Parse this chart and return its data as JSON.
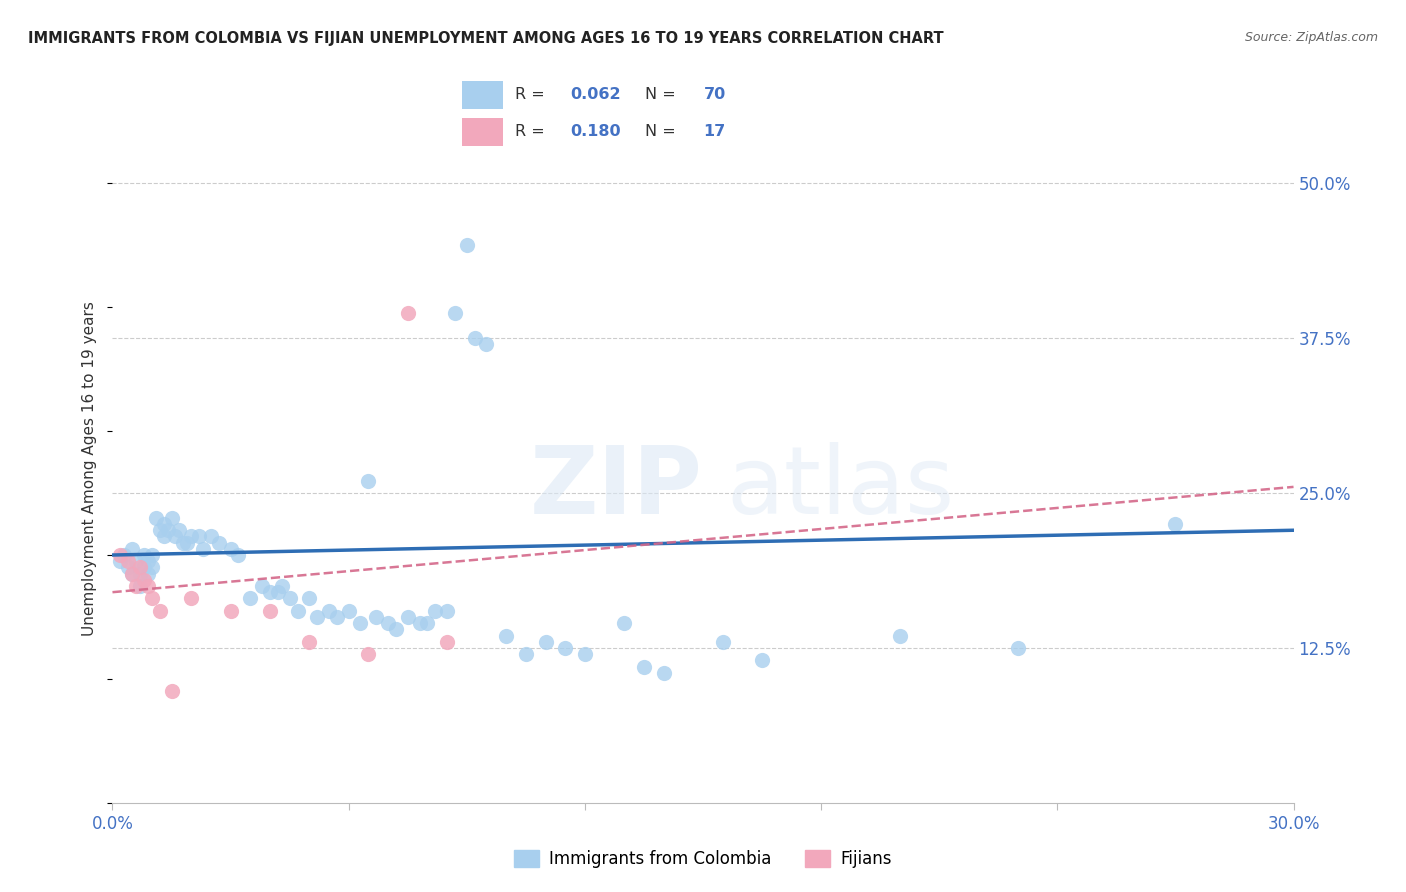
{
  "title": "IMMIGRANTS FROM COLOMBIA VS FIJIAN UNEMPLOYMENT AMONG AGES 16 TO 19 YEARS CORRELATION CHART",
  "source": "Source: ZipAtlas.com",
  "ylabel": "Unemployment Among Ages 16 to 19 years",
  "ytick_labels": [
    "50.0%",
    "37.5%",
    "25.0%",
    "12.5%"
  ],
  "ytick_values": [
    0.5,
    0.375,
    0.25,
    0.125
  ],
  "xlim": [
    0.0,
    0.3
  ],
  "ylim": [
    0.0,
    0.54
  ],
  "blue_color": "#A8CFEE",
  "pink_color": "#F2A8BC",
  "blue_line_color": "#2E6DB4",
  "pink_line_color": "#D4688A",
  "blue_scatter": [
    [
      0.002,
      0.195
    ],
    [
      0.003,
      0.2
    ],
    [
      0.004,
      0.19
    ],
    [
      0.005,
      0.205
    ],
    [
      0.005,
      0.185
    ],
    [
      0.006,
      0.195
    ],
    [
      0.007,
      0.185
    ],
    [
      0.007,
      0.175
    ],
    [
      0.008,
      0.2
    ],
    [
      0.008,
      0.19
    ],
    [
      0.009,
      0.195
    ],
    [
      0.009,
      0.185
    ],
    [
      0.01,
      0.2
    ],
    [
      0.01,
      0.19
    ],
    [
      0.011,
      0.23
    ],
    [
      0.012,
      0.22
    ],
    [
      0.013,
      0.225
    ],
    [
      0.013,
      0.215
    ],
    [
      0.014,
      0.22
    ],
    [
      0.015,
      0.23
    ],
    [
      0.016,
      0.215
    ],
    [
      0.017,
      0.22
    ],
    [
      0.018,
      0.21
    ],
    [
      0.019,
      0.21
    ],
    [
      0.02,
      0.215
    ],
    [
      0.022,
      0.215
    ],
    [
      0.023,
      0.205
    ],
    [
      0.025,
      0.215
    ],
    [
      0.027,
      0.21
    ],
    [
      0.03,
      0.205
    ],
    [
      0.032,
      0.2
    ],
    [
      0.035,
      0.165
    ],
    [
      0.038,
      0.175
    ],
    [
      0.04,
      0.17
    ],
    [
      0.042,
      0.17
    ],
    [
      0.043,
      0.175
    ],
    [
      0.045,
      0.165
    ],
    [
      0.047,
      0.155
    ],
    [
      0.05,
      0.165
    ],
    [
      0.052,
      0.15
    ],
    [
      0.055,
      0.155
    ],
    [
      0.057,
      0.15
    ],
    [
      0.06,
      0.155
    ],
    [
      0.063,
      0.145
    ],
    [
      0.065,
      0.26
    ],
    [
      0.067,
      0.15
    ],
    [
      0.07,
      0.145
    ],
    [
      0.072,
      0.14
    ],
    [
      0.075,
      0.15
    ],
    [
      0.078,
      0.145
    ],
    [
      0.08,
      0.145
    ],
    [
      0.082,
      0.155
    ],
    [
      0.085,
      0.155
    ],
    [
      0.087,
      0.395
    ],
    [
      0.09,
      0.45
    ],
    [
      0.092,
      0.375
    ],
    [
      0.095,
      0.37
    ],
    [
      0.1,
      0.135
    ],
    [
      0.105,
      0.12
    ],
    [
      0.11,
      0.13
    ],
    [
      0.115,
      0.125
    ],
    [
      0.12,
      0.12
    ],
    [
      0.13,
      0.145
    ],
    [
      0.135,
      0.11
    ],
    [
      0.14,
      0.105
    ],
    [
      0.155,
      0.13
    ],
    [
      0.165,
      0.115
    ],
    [
      0.2,
      0.135
    ],
    [
      0.23,
      0.125
    ],
    [
      0.27,
      0.225
    ]
  ],
  "pink_scatter": [
    [
      0.002,
      0.2
    ],
    [
      0.004,
      0.195
    ],
    [
      0.005,
      0.185
    ],
    [
      0.006,
      0.175
    ],
    [
      0.007,
      0.19
    ],
    [
      0.008,
      0.18
    ],
    [
      0.009,
      0.175
    ],
    [
      0.01,
      0.165
    ],
    [
      0.012,
      0.155
    ],
    [
      0.015,
      0.09
    ],
    [
      0.02,
      0.165
    ],
    [
      0.03,
      0.155
    ],
    [
      0.04,
      0.155
    ],
    [
      0.05,
      0.13
    ],
    [
      0.065,
      0.12
    ],
    [
      0.075,
      0.395
    ],
    [
      0.085,
      0.13
    ]
  ],
  "blue_R": 0.062,
  "blue_N": 70,
  "pink_R": 0.18,
  "pink_N": 17
}
